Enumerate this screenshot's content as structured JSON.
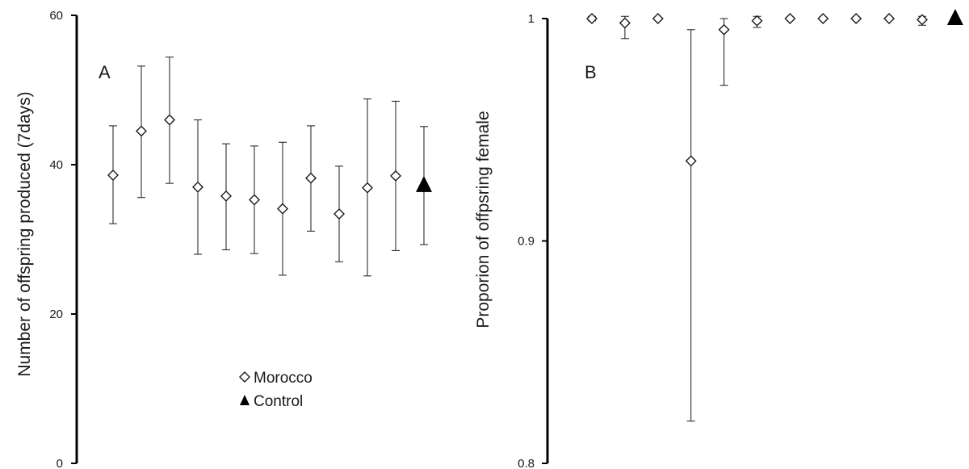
{
  "chart_data": [
    {
      "panel": "A",
      "type": "scatter",
      "title": "",
      "xlabel": "",
      "ylabel": "Number of offspring produced (7days)",
      "ylim": [
        0,
        60
      ],
      "yticks": [
        "0",
        "20",
        "40",
        "60"
      ],
      "grid": false,
      "legend": {
        "placement": "bottom-center",
        "entries": [
          {
            "label": "Morocco",
            "marker": "open-diamond"
          },
          {
            "label": "Control",
            "marker": "filled-triangle"
          }
        ]
      },
      "series": [
        {
          "name": "Morocco",
          "marker": "open-diamond",
          "color": "#1a1a1a",
          "x": [
            1,
            2,
            3,
            4,
            5,
            6,
            7,
            8,
            9,
            10,
            11
          ],
          "values": [
            38.6,
            44.5,
            46.0,
            37.0,
            35.8,
            35.3,
            34.1,
            38.2,
            33.4,
            36.9,
            38.5
          ],
          "err_low": [
            32.1,
            35.6,
            37.5,
            28.0,
            28.6,
            28.1,
            25.2,
            31.1,
            27.0,
            25.1,
            28.5
          ],
          "err_high": [
            45.2,
            53.2,
            54.4,
            46.0,
            42.8,
            42.5,
            43.0,
            45.2,
            39.8,
            48.8,
            48.5
          ]
        },
        {
          "name": "Control",
          "marker": "filled-triangle",
          "color": "#000000",
          "x": [
            12
          ],
          "values": [
            37.2
          ],
          "err_low": [
            29.3
          ],
          "err_high": [
            45.1
          ]
        }
      ]
    },
    {
      "panel": "B",
      "type": "scatter",
      "title": "",
      "xlabel": "",
      "ylabel": "Proporion of offpsring female",
      "ylim": [
        0.8,
        1.0
      ],
      "yticks": [
        "0.8",
        "0.9",
        "1"
      ],
      "grid": false,
      "series": [
        {
          "name": "Morocco",
          "marker": "open-diamond",
          "color": "#1a1a1a",
          "x": [
            1,
            2,
            3,
            4,
            5,
            6,
            7,
            8,
            9,
            10,
            11
          ],
          "values": [
            1.0,
            0.998,
            1.0,
            0.936,
            0.995,
            0.999,
            1.0,
            1.0,
            1.0,
            1.0,
            0.9995
          ],
          "err_low": [
            0.999,
            0.991,
            1.0,
            0.819,
            0.97,
            0.996,
            1.0,
            1.0,
            1.0,
            1.0,
            0.997
          ],
          "err_high": [
            1.001,
            1.001,
            1.0,
            0.995,
            1.0,
            1.001,
            1.0,
            1.0,
            1.0,
            1.0,
            1.001
          ]
        },
        {
          "name": "Control",
          "marker": "filled-triangle",
          "color": "#000000",
          "x": [
            12
          ],
          "values": [
            1.0
          ],
          "err_low": [
            1.0
          ],
          "err_high": [
            1.0
          ]
        }
      ]
    }
  ]
}
